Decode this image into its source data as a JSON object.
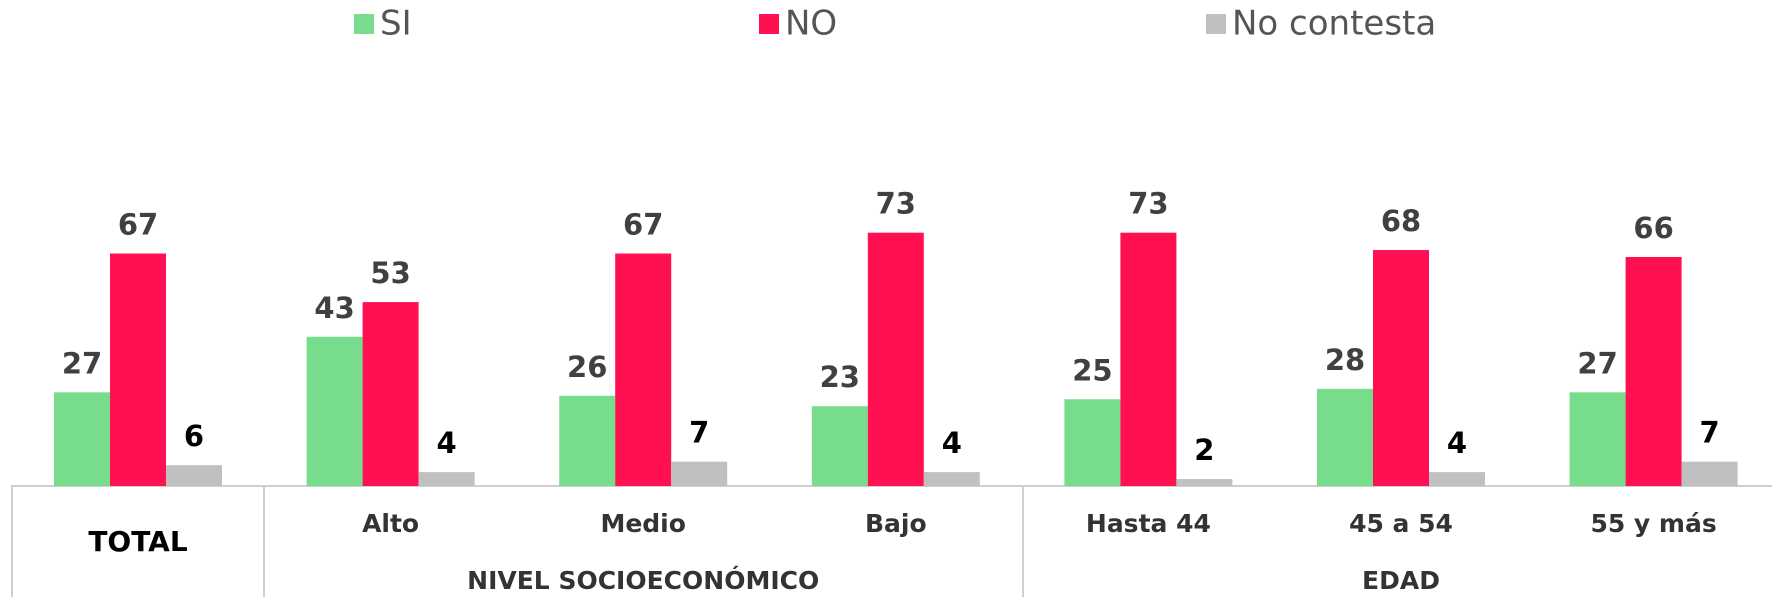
{
  "chart_data": {
    "type": "bar",
    "categories": [
      "TOTAL",
      "Alto",
      "Medio",
      "Bajo",
      "Hasta 44",
      "45 a 54",
      "55 y más"
    ],
    "groups": [
      {
        "label": "NIVEL SOCIOECONÓMICO",
        "categories": [
          1,
          2,
          3
        ]
      },
      {
        "label": "EDAD",
        "categories": [
          4,
          5,
          6
        ]
      }
    ],
    "series": [
      {
        "name": "SI",
        "color": "#77dd8c",
        "values": [
          27,
          43,
          26,
          23,
          25,
          28,
          27
        ]
      },
      {
        "name": "NO",
        "color": "#ff1050",
        "values": [
          67,
          53,
          67,
          73,
          73,
          68,
          66
        ]
      },
      {
        "name": "No contesta",
        "color": "#c0c0c0",
        "values": [
          6,
          4,
          7,
          4,
          2,
          4,
          7
        ]
      }
    ],
    "legend": "top"
  }
}
